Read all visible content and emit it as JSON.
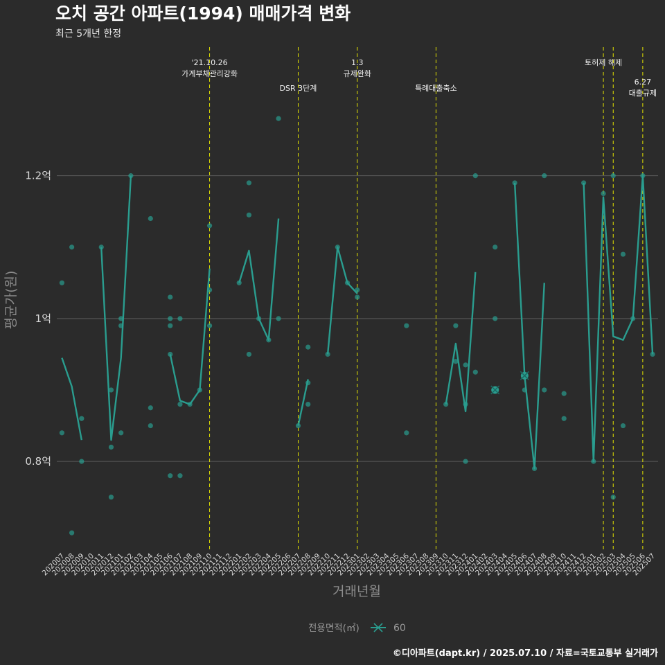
{
  "title": "오치 공간 아파트(1994) 매매가격 변화",
  "subtitle": "최근 5개년 한정",
  "caption": "©디아파트(dapt.kr) / 2025.07.10 / 자료=국토교통부 실거래가",
  "colors": {
    "background": "#2b2b2b",
    "series": "#2a9d8f",
    "event_line": "#e5e500",
    "grid": "#5a5a5a"
  },
  "chart_data": {
    "type": "line",
    "xlabel": "거래년월",
    "ylabel": "평균가(원)",
    "ylim": [
      0.675,
      1.38
    ],
    "y_ticks": [
      {
        "value": 0.8,
        "label": "0.8억"
      },
      {
        "value": 1.0,
        "label": "1억"
      },
      {
        "value": 1.2,
        "label": "1.2억"
      }
    ],
    "x_categories": [
      "202007",
      "202008",
      "202009",
      "202010",
      "202011",
      "202012",
      "202101",
      "202102",
      "202103",
      "202104",
      "202105",
      "202106",
      "202107",
      "202108",
      "202109",
      "202110",
      "202111",
      "202112",
      "202201",
      "202202",
      "202203",
      "202204",
      "202205",
      "202206",
      "202207",
      "202208",
      "202209",
      "202210",
      "202211",
      "202212",
      "202301",
      "202302",
      "202303",
      "202304",
      "202305",
      "202306",
      "202307",
      "202308",
      "202309",
      "202310",
      "202311",
      "202312",
      "202401",
      "202402",
      "202403",
      "202404",
      "202405",
      "202406",
      "202407",
      "202408",
      "202409",
      "202410",
      "202411",
      "202412",
      "202501",
      "202502",
      "202503",
      "202504",
      "202505",
      "202506",
      "202507"
    ],
    "legend": {
      "title": "전용면적(㎡)",
      "items": [
        {
          "label": "60"
        }
      ],
      "position": "bottom"
    },
    "series": [
      {
        "name": "60",
        "line_segments": [
          [
            [
              "202007",
              0.945
            ],
            [
              "202008",
              0.905
            ],
            [
              "202009",
              0.83
            ]
          ],
          [
            [
              "202011",
              1.1
            ],
            [
              "202012",
              0.83
            ],
            [
              "202101",
              0.945
            ],
            [
              "202102",
              1.2
            ]
          ],
          [
            [
              "202106",
              0.95
            ],
            [
              "202107",
              0.885
            ],
            [
              "202108",
              0.88
            ],
            [
              "202109",
              0.9
            ],
            [
              "202110",
              1.07
            ]
          ],
          [
            [
              "202201",
              1.05
            ],
            [
              "202202",
              1.095
            ],
            [
              "202203",
              1.0
            ],
            [
              "202204",
              0.97
            ],
            [
              "202205",
              1.14
            ]
          ],
          [
            [
              "202207",
              0.85
            ],
            [
              "202208",
              0.915
            ]
          ],
          [
            [
              "202210",
              0.95
            ],
            [
              "202211",
              1.1
            ],
            [
              "202212",
              1.05
            ],
            [
              "202301",
              1.035
            ]
          ],
          [
            [
              "202310",
              0.88
            ],
            [
              "202311",
              0.965
            ],
            [
              "202312",
              0.87
            ],
            [
              "202401",
              1.065
            ]
          ],
          [
            [
              "202405",
              1.19
            ],
            [
              "202406",
              0.92
            ],
            [
              "202407",
              0.79
            ],
            [
              "202408",
              1.05
            ]
          ],
          [
            [
              "202412",
              1.19
            ],
            [
              "202501",
              0.8
            ],
            [
              "202502",
              1.17
            ],
            [
              "202503",
              0.975
            ],
            [
              "202504",
              0.97
            ],
            [
              "202505",
              1.0
            ],
            [
              "202506",
              1.2
            ],
            [
              "202507",
              0.95
            ]
          ]
        ],
        "points": [
          [
            "202007",
            1.05
          ],
          [
            "202007",
            0.84
          ],
          [
            "202008",
            1.1
          ],
          [
            "202008",
            0.7
          ],
          [
            "202009",
            0.86
          ],
          [
            "202009",
            0.8
          ],
          [
            "202011",
            1.1
          ],
          [
            "202012",
            0.9
          ],
          [
            "202012",
            0.82
          ],
          [
            "202012",
            0.75
          ],
          [
            "202101",
            1.0
          ],
          [
            "202101",
            0.99
          ],
          [
            "202101",
            0.84
          ],
          [
            "202102",
            1.2
          ],
          [
            "202104",
            1.14
          ],
          [
            "202104",
            0.875
          ],
          [
            "202104",
            0.85
          ],
          [
            "202106",
            1.03
          ],
          [
            "202106",
            1.0
          ],
          [
            "202106",
            0.99
          ],
          [
            "202106",
            0.95
          ],
          [
            "202106",
            0.78
          ],
          [
            "202107",
            1.0
          ],
          [
            "202107",
            0.88
          ],
          [
            "202107",
            0.78
          ],
          [
            "202108",
            0.88
          ],
          [
            "202109",
            0.9
          ],
          [
            "202110",
            1.13
          ],
          [
            "202110",
            1.04
          ],
          [
            "202110",
            0.99
          ],
          [
            "202201",
            1.05
          ],
          [
            "202202",
            1.19
          ],
          [
            "202202",
            1.145
          ],
          [
            "202202",
            0.95
          ],
          [
            "202203",
            1.0
          ],
          [
            "202204",
            0.97
          ],
          [
            "202205",
            1.28
          ],
          [
            "202205",
            1.0
          ],
          [
            "202207",
            0.85
          ],
          [
            "202208",
            0.96
          ],
          [
            "202208",
            0.91
          ],
          [
            "202208",
            0.88
          ],
          [
            "202210",
            0.95
          ],
          [
            "202211",
            1.1
          ],
          [
            "202212",
            1.05
          ],
          [
            "202301",
            1.04
          ],
          [
            "202301",
            1.03
          ],
          [
            "202306",
            0.99
          ],
          [
            "202306",
            0.84
          ],
          [
            "202310",
            0.88
          ],
          [
            "202311",
            0.99
          ],
          [
            "202311",
            0.94
          ],
          [
            "202312",
            0.935
          ],
          [
            "202312",
            0.88
          ],
          [
            "202312",
            0.8
          ],
          [
            "202401",
            1.2
          ],
          [
            "202401",
            0.925
          ],
          [
            "202403",
            1.1
          ],
          [
            "202403",
            1.0
          ],
          [
            "202403",
            0.9
          ],
          [
            "202405",
            1.19
          ],
          [
            "202406",
            0.92
          ],
          [
            "202406",
            0.9
          ],
          [
            "202407",
            0.79
          ],
          [
            "202408",
            1.2
          ],
          [
            "202408",
            0.9
          ],
          [
            "202410",
            0.895
          ],
          [
            "202410",
            0.86
          ],
          [
            "202412",
            1.19
          ],
          [
            "202501",
            0.8
          ],
          [
            "202502",
            1.175
          ],
          [
            "202503",
            1.2
          ],
          [
            "202503",
            0.75
          ],
          [
            "202504",
            1.09
          ],
          [
            "202504",
            0.85
          ],
          [
            "202505",
            1.0
          ],
          [
            "202506",
            1.2
          ],
          [
            "202507",
            0.95
          ]
        ],
        "highlight_points": [
          [
            "202403",
            0.9
          ],
          [
            "202406",
            0.92
          ]
        ]
      }
    ],
    "events": [
      {
        "x": "202110",
        "label_lines": [
          "'21.10.26",
          "가계부채관리강화"
        ],
        "tier": 1
      },
      {
        "x": "202207",
        "label_lines": [
          "DSR 3단계"
        ],
        "tier": 2
      },
      {
        "x": "202301",
        "label_lines": [
          "1.3",
          "규제완화"
        ],
        "tier": 1
      },
      {
        "x": "202309",
        "label_lines": [
          "특례대출축소"
        ],
        "tier": 2
      },
      {
        "x": "202502",
        "label_lines": [
          "토허제 해제"
        ],
        "tier": 1
      },
      {
        "x": "202503",
        "label_lines": [],
        "tier": 1
      },
      {
        "x": "202506",
        "label_lines": [
          "6.27",
          "대출규제"
        ],
        "tier": 3
      }
    ]
  }
}
